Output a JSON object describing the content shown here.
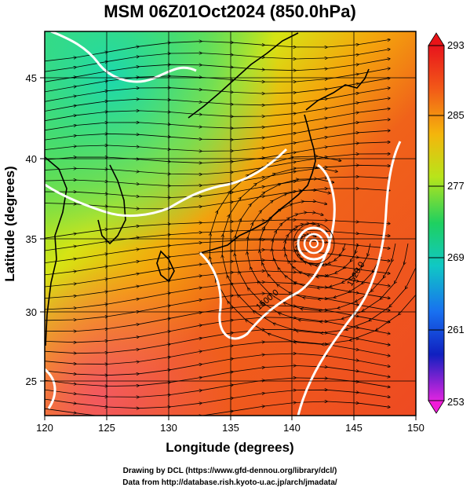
{
  "title": "MSM 06Z01Oct2024 (850.0hPa)",
  "x_axis": {
    "label": "Longitude (degrees)",
    "ticks": [
      "120",
      "125",
      "130",
      "135",
      "140",
      "145",
      "150"
    ],
    "range": [
      120,
      150
    ]
  },
  "y_axis": {
    "label": "Latitude  (degrees)",
    "ticks": [
      "25",
      "30",
      "35",
      "40",
      "45"
    ],
    "range": [
      22.4,
      47.6
    ]
  },
  "colorbar": {
    "ticks": [
      "293",
      "285",
      "277",
      "269",
      "261",
      "253"
    ],
    "range": [
      253,
      293
    ]
  },
  "contour_labels": [
    "1500.0",
    "1520.0"
  ],
  "credits": {
    "line1": "Drawing by DCL (https://www.gfd-dennou.org/library/dcl/)",
    "line2": "Data from http://database.rish.kyoto-u.ac.jp/arch/jmadata/"
  },
  "typhoon_center": {
    "lon": 142.2,
    "lat": 34.6
  }
}
